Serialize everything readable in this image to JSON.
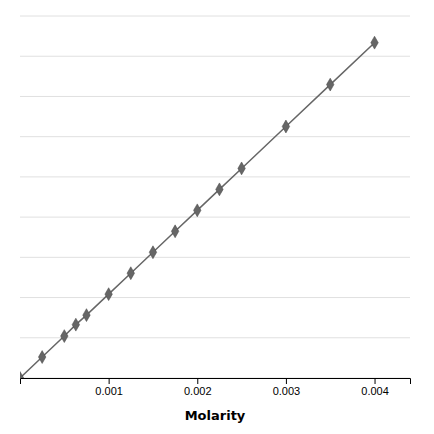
{
  "chart_data": {
    "type": "line",
    "x_label": "Molarity",
    "x": [
      0.0,
      0.00025,
      0.0005,
      0.00063,
      0.00075,
      0.001,
      0.00125,
      0.0015,
      0.00175,
      0.002,
      0.00225,
      0.0025,
      0.003,
      0.0035,
      0.004
    ],
    "values": [
      0.0,
      0.055,
      0.11,
      0.14,
      0.165,
      0.22,
      0.275,
      0.33,
      0.385,
      0.44,
      0.495,
      0.55,
      0.66,
      0.77,
      0.88
    ],
    "color": "#666666",
    "marker": "diamond",
    "xlim": [
      0.0,
      0.0044
    ],
    "xticks": [
      0.001,
      0.002,
      0.003,
      0.004
    ],
    "ylim": [
      0.0,
      0.95
    ],
    "yticks": [
      0.0,
      0.10555555555555556,
      0.2111111111111111,
      0.31666666666666665,
      0.4222222222222222,
      0.5277777777777778,
      0.6333333333333333,
      0.7388888888888889,
      0.8444444444444444,
      0.95
    ],
    "grid": true,
    "tick_labels": "x"
  }
}
